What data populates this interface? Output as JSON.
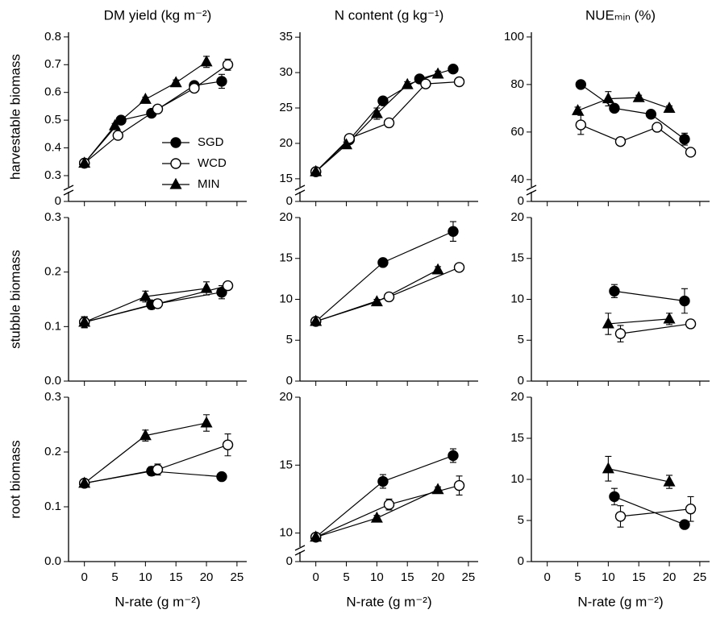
{
  "chart_data": [
    {
      "type": "scatter-line",
      "title": "DM yield (kg m⁻²)",
      "ylabel": "harvestable biomass",
      "xlim": [
        -2.6,
        26.6
      ],
      "xticks": [
        0,
        5,
        10,
        15,
        20,
        25
      ],
      "ylim": [
        0.207,
        0.817
      ],
      "yticks": [
        0.3,
        0.4,
        0.5,
        0.6,
        0.7,
        0.8
      ],
      "ybreak_tick": 0,
      "legend": true,
      "series": [
        {
          "name": "SGD",
          "marker": "filled-circle",
          "x": [
            0,
            6,
            11,
            18,
            22.5
          ],
          "values": [
            0.345,
            0.5,
            0.525,
            0.625,
            0.64
          ],
          "errors": [
            0.005,
            0.008,
            0.008,
            0.01,
            0.025
          ]
        },
        {
          "name": "WCD",
          "marker": "open-circle",
          "x": [
            0,
            5.5,
            12,
            18,
            23.5
          ],
          "values": [
            0.345,
            0.445,
            0.54,
            0.615,
            0.7
          ],
          "errors": [
            0.005,
            0.008,
            0.01,
            0.01,
            0.02
          ]
        },
        {
          "name": "MIN",
          "marker": "triangle",
          "x": [
            0,
            5,
            10,
            15,
            20
          ],
          "values": [
            0.345,
            0.48,
            0.575,
            0.635,
            0.71
          ],
          "errors": [
            0.005,
            0.008,
            0.008,
            0.01,
            0.02
          ]
        }
      ]
    },
    {
      "type": "scatter-line",
      "title": "N content (g kg⁻¹)",
      "xlim": [
        -2.6,
        26.6
      ],
      "xticks": [
        0,
        5,
        10,
        15,
        20,
        25
      ],
      "ylim": [
        11.8,
        35.7
      ],
      "yticks": [
        15,
        20,
        25,
        30,
        35
      ],
      "ybreak_tick": 0,
      "series": [
        {
          "marker": "filled-circle",
          "x": [
            0,
            5.5,
            11,
            17,
            22.5
          ],
          "values": [
            16,
            20.5,
            26,
            29.1,
            30.5
          ],
          "errors": [
            0.3,
            0.4,
            0.5,
            0.4,
            0.5
          ]
        },
        {
          "marker": "open-circle",
          "x": [
            0,
            5.5,
            12,
            18,
            23.5
          ],
          "values": [
            16,
            20.7,
            22.9,
            28.4,
            28.7
          ],
          "errors": [
            0.3,
            0.4,
            0.5,
            0.4,
            0.5
          ]
        },
        {
          "marker": "triangle",
          "x": [
            0,
            5,
            10,
            15,
            20
          ],
          "values": [
            16,
            19.8,
            24.2,
            28.3,
            29.8
          ],
          "errors": [
            0.3,
            0.4,
            0.8,
            0.4,
            0.4
          ]
        }
      ]
    },
    {
      "type": "scatter-line",
      "title": "NUEₘᵢₙ (%)",
      "xlim": [
        -2.6,
        26.6
      ],
      "xticks": [
        0,
        5,
        10,
        15,
        20,
        25
      ],
      "ylim": [
        30.8,
        102
      ],
      "yticks": [
        40,
        60,
        80,
        100
      ],
      "ybreak_tick": 0,
      "series": [
        {
          "marker": "filled-circle",
          "x": [
            5.5,
            11,
            17,
            22.5
          ],
          "values": [
            80,
            70,
            67.5,
            57
          ],
          "errors": [
            1,
            1,
            1,
            2.5
          ]
        },
        {
          "marker": "open-circle",
          "x": [
            5.5,
            12,
            18,
            23.5
          ],
          "values": [
            63,
            56,
            62,
            51.5
          ],
          "errors": [
            4,
            1,
            1,
            1.5
          ]
        },
        {
          "marker": "triangle",
          "x": [
            5,
            10,
            15,
            20
          ],
          "values": [
            69,
            74,
            74.5,
            70
          ],
          "errors": [
            1.5,
            3,
            1,
            1
          ]
        }
      ]
    },
    {
      "type": "scatter-line",
      "ylabel": "stubble biomass",
      "xlim": [
        -2.6,
        26.6
      ],
      "xticks": [
        0,
        5,
        10,
        15,
        20,
        25
      ],
      "ylim": [
        0,
        0.3
      ],
      "yticks": [
        0.0,
        0.1,
        0.2,
        0.3
      ],
      "series": [
        {
          "marker": "filled-circle",
          "x": [
            0,
            11,
            22.5
          ],
          "values": [
            0.108,
            0.14,
            0.163
          ],
          "errors": [
            0.01,
            0.008,
            0.012
          ]
        },
        {
          "marker": "open-circle",
          "x": [
            0,
            12,
            23.5
          ],
          "values": [
            0.108,
            0.142,
            0.175
          ],
          "errors": [
            0.01,
            0.008,
            0.006
          ]
        },
        {
          "marker": "triangle",
          "x": [
            0,
            10,
            20
          ],
          "values": [
            0.108,
            0.155,
            0.17
          ],
          "errors": [
            0.01,
            0.01,
            0.012
          ]
        }
      ]
    },
    {
      "type": "scatter-line",
      "xlim": [
        -2.6,
        26.6
      ],
      "xticks": [
        0,
        5,
        10,
        15,
        20,
        25
      ],
      "ylim": [
        0,
        20
      ],
      "yticks": [
        0,
        5,
        10,
        15,
        20
      ],
      "series": [
        {
          "marker": "filled-circle",
          "x": [
            0,
            11,
            22.5
          ],
          "values": [
            7.3,
            14.5,
            18.3
          ],
          "errors": [
            0.3,
            0.3,
            1.2
          ]
        },
        {
          "marker": "open-circle",
          "x": [
            0,
            12,
            23.5
          ],
          "values": [
            7.3,
            10.3,
            13.9
          ],
          "errors": [
            0.3,
            0.3,
            0.4
          ]
        },
        {
          "marker": "triangle",
          "x": [
            0,
            10,
            20
          ],
          "values": [
            7.3,
            9.7,
            13.6
          ],
          "errors": [
            0.3,
            0.3,
            0.4
          ]
        }
      ]
    },
    {
      "type": "scatter-line",
      "xlim": [
        -2.6,
        26.6
      ],
      "xticks": [
        0,
        5,
        10,
        15,
        20,
        25
      ],
      "ylim": [
        0,
        20
      ],
      "yticks": [
        0,
        5,
        10,
        15,
        20
      ],
      "series": [
        {
          "marker": "filled-circle",
          "x": [
            11,
            22.5
          ],
          "values": [
            11,
            9.8
          ],
          "errors": [
            0.8,
            1.5
          ]
        },
        {
          "marker": "open-circle",
          "x": [
            12,
            23.5
          ],
          "values": [
            5.8,
            7
          ],
          "errors": [
            1,
            0.5
          ]
        },
        {
          "marker": "triangle",
          "x": [
            10,
            20
          ],
          "values": [
            7,
            7.6
          ],
          "errors": [
            1.3,
            0.7
          ]
        }
      ]
    },
    {
      "type": "scatter-line",
      "ylabel": "root biomass",
      "xlabel": "N-rate (g m⁻²)",
      "xlim": [
        -2.6,
        26.6
      ],
      "xticks": [
        0,
        5,
        10,
        15,
        20,
        25
      ],
      "ylim": [
        0,
        0.3
      ],
      "yticks": [
        0.0,
        0.1,
        0.2,
        0.3
      ],
      "series": [
        {
          "marker": "filled-circle",
          "x": [
            0,
            11,
            22.5
          ],
          "values": [
            0.143,
            0.165,
            0.155
          ],
          "errors": [
            0.004,
            0.008,
            0.004
          ]
        },
        {
          "marker": "open-circle",
          "x": [
            0,
            12,
            23.5
          ],
          "values": [
            0.143,
            0.168,
            0.213
          ],
          "errors": [
            0.004,
            0.01,
            0.02
          ]
        },
        {
          "marker": "triangle",
          "x": [
            0,
            10,
            20
          ],
          "values": [
            0.143,
            0.23,
            0.253
          ],
          "errors": [
            0.004,
            0.01,
            0.015
          ]
        }
      ]
    },
    {
      "type": "scatter-line",
      "xlabel": "N-rate (g m⁻²)",
      "xlim": [
        -2.6,
        26.6
      ],
      "xticks": [
        0,
        5,
        10,
        15,
        20,
        25
      ],
      "ylim": [
        7.9,
        20
      ],
      "yticks": [
        10,
        15,
        20
      ],
      "ybreak_tick": 0,
      "series": [
        {
          "marker": "filled-circle",
          "x": [
            0,
            11,
            22.5
          ],
          "values": [
            9.7,
            13.8,
            15.7
          ],
          "errors": [
            0.2,
            0.5,
            0.5
          ]
        },
        {
          "marker": "open-circle",
          "x": [
            0,
            12,
            23.5
          ],
          "values": [
            9.7,
            12.1,
            13.5
          ],
          "errors": [
            0.2,
            0.4,
            0.7
          ]
        },
        {
          "marker": "triangle",
          "x": [
            0,
            10,
            20
          ],
          "values": [
            9.7,
            11.1,
            13.2
          ],
          "errors": [
            0.2,
            0.2,
            0.2
          ]
        }
      ]
    },
    {
      "type": "scatter-line",
      "xlabel": "N-rate (g m⁻²)",
      "xlim": [
        -2.6,
        26.6
      ],
      "xticks": [
        0,
        5,
        10,
        15,
        20,
        25
      ],
      "ylim": [
        0,
        20
      ],
      "yticks": [
        0,
        5,
        10,
        15,
        20
      ],
      "series": [
        {
          "marker": "filled-circle",
          "x": [
            11,
            22.5
          ],
          "values": [
            7.9,
            4.5
          ],
          "errors": [
            1,
            0.3
          ]
        },
        {
          "marker": "open-circle",
          "x": [
            12,
            23.5
          ],
          "values": [
            5.5,
            6.4
          ],
          "errors": [
            1.3,
            1.5
          ]
        },
        {
          "marker": "triangle",
          "x": [
            10,
            20
          ],
          "values": [
            11.3,
            9.7
          ],
          "errors": [
            1.5,
            0.8
          ]
        }
      ]
    }
  ]
}
